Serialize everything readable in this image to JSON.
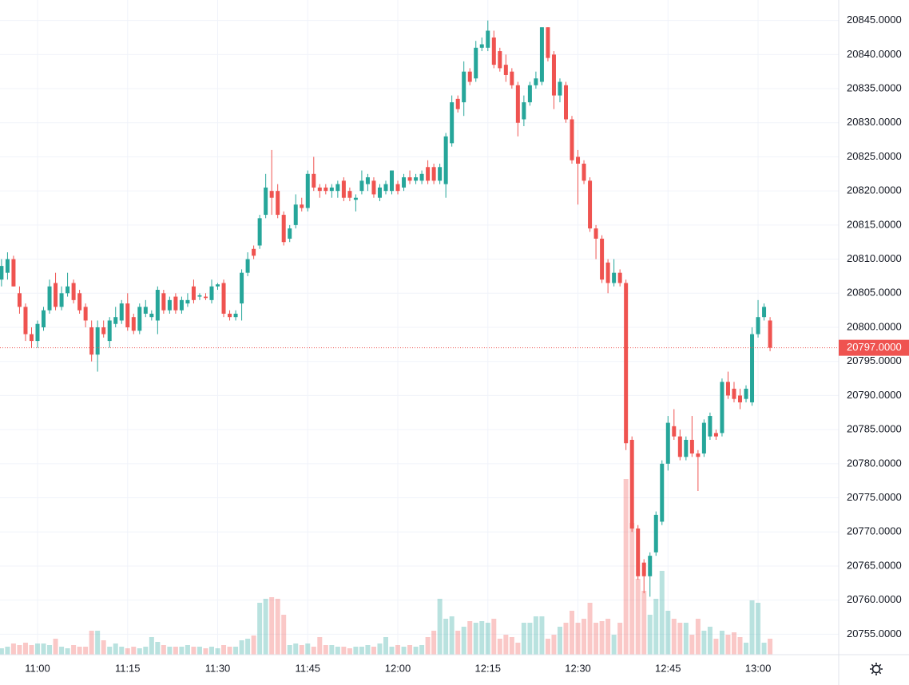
{
  "chart_data": {
    "type": "candlestick",
    "categories": [
      null,
      null,
      null,
      null,
      null,
      null,
      "11:00",
      null,
      null,
      null,
      null,
      null,
      null,
      null,
      null,
      null,
      null,
      null,
      null,
      null,
      null,
      "11:15",
      null,
      null,
      null,
      null,
      null,
      null,
      null,
      null,
      null,
      null,
      null,
      null,
      null,
      null,
      "11:30",
      null,
      null,
      null,
      null,
      null,
      null,
      null,
      null,
      null,
      null,
      null,
      null,
      null,
      null,
      "11:45",
      null,
      null,
      null,
      null,
      null,
      null,
      null,
      null,
      null,
      null,
      null,
      null,
      null,
      null,
      "12:00",
      null,
      null,
      null,
      null,
      null,
      null,
      null,
      null,
      null,
      null,
      null,
      null,
      null,
      null,
      "12:15",
      null,
      null,
      null,
      null,
      null,
      null,
      null,
      null,
      null,
      null,
      null,
      null,
      null,
      null,
      "12:30",
      null,
      null,
      null,
      null,
      null,
      null,
      null,
      null,
      null,
      null,
      null,
      null,
      null,
      null,
      "12:45",
      null,
      null,
      null,
      null,
      null,
      null,
      null,
      null,
      null,
      null,
      null,
      null,
      null,
      null,
      "13:00",
      null,
      null
    ],
    "ohlc": [
      [
        20807,
        20810,
        20806,
        20809
      ],
      [
        20808,
        20811,
        20807,
        20810
      ],
      [
        20810,
        20810.5,
        20806,
        20806
      ],
      [
        20805,
        20806,
        20802,
        20803
      ],
      [
        20803,
        20803.5,
        20798,
        20799
      ],
      [
        20799,
        20800,
        20797,
        20798
      ],
      [
        20798,
        20801,
        20797,
        20800.5
      ],
      [
        20800,
        20803,
        20799.5,
        20802.5
      ],
      [
        20802.5,
        20807,
        20802,
        20806
      ],
      [
        20806.5,
        20808,
        20802.5,
        20803
      ],
      [
        20803,
        20806,
        20802.5,
        20805
      ],
      [
        20805,
        20808,
        20804.5,
        20806
      ],
      [
        20806.5,
        20807,
        20803.5,
        20804
      ],
      [
        20805,
        20805.5,
        20802,
        20802.5
      ],
      [
        20803,
        20803.5,
        20800,
        20801
      ],
      [
        20800,
        20801,
        20795,
        20796
      ],
      [
        20796,
        20801,
        20793.5,
        20800
      ],
      [
        20800,
        20801,
        20798.5,
        20799
      ],
      [
        20798,
        20801.5,
        20797,
        20801
      ],
      [
        20800.5,
        20803,
        20800,
        20801.5
      ],
      [
        20801,
        20804,
        20800.5,
        20803.5
      ],
      [
        20803.5,
        20805,
        20799.5,
        20800
      ],
      [
        20801.5,
        20802,
        20799,
        20799.5
      ],
      [
        20799.5,
        20803.5,
        20799,
        20803
      ],
      [
        20802,
        20804,
        20801.5,
        20803
      ],
      [
        20801.5,
        20802.5,
        20801,
        20802
      ],
      [
        20801,
        20806,
        20799,
        20805.5
      ],
      [
        20805,
        20805.5,
        20802,
        20802.5
      ],
      [
        20802.5,
        20804.5,
        20802,
        20804
      ],
      [
        20804.5,
        20805,
        20802,
        20802.5
      ],
      [
        20802.5,
        20804.5,
        20802,
        20804
      ],
      [
        20803.5,
        20805,
        20803,
        20804
      ],
      [
        20806,
        20807,
        20803.5,
        20804
      ],
      [
        20804.5,
        20805,
        20804,
        20804.7
      ],
      [
        20804.5,
        20805,
        20804,
        20804.3
      ],
      [
        20804,
        20807,
        20803.5,
        20806
      ],
      [
        20806,
        20806.5,
        20805.5,
        20806.3
      ],
      [
        20806.5,
        20807,
        20801.5,
        20802
      ],
      [
        20802,
        20802.5,
        20801,
        20801.5
      ],
      [
        20801.5,
        20802.5,
        20801,
        20802
      ],
      [
        20803.5,
        20808.5,
        20801,
        20808
      ],
      [
        20808,
        20811,
        20807.5,
        20810
      ],
      [
        20811.5,
        20812,
        20810,
        20810.5
      ],
      [
        20812,
        20816.5,
        20811.5,
        20816
      ],
      [
        20816.5,
        20822.5,
        20816,
        20820.5
      ],
      [
        20820,
        20826,
        20816.5,
        20819
      ],
      [
        20820,
        20821,
        20816,
        20816.5
      ],
      [
        20816.5,
        20817,
        20812,
        20812.5
      ],
      [
        20813,
        20815,
        20812.5,
        20814.5
      ],
      [
        20815,
        20819.5,
        20814.5,
        20818
      ],
      [
        20818,
        20819,
        20817,
        20817.5
      ],
      [
        20817.5,
        20823,
        20817,
        20822.5
      ],
      [
        20822.5,
        20825,
        20820,
        20820.5
      ],
      [
        20820.5,
        20821,
        20819,
        20820
      ],
      [
        20820.5,
        20821,
        20819.5,
        20820
      ],
      [
        20820,
        20821,
        20819,
        20820.5
      ],
      [
        20820,
        20821.5,
        20819,
        20821
      ],
      [
        20821.5,
        20822,
        20818.5,
        20819
      ],
      [
        20820,
        20820.5,
        20818.5,
        20819
      ],
      [
        20818.7,
        20819.5,
        20817,
        20819
      ],
      [
        20820,
        20823,
        20819.5,
        20821.5
      ],
      [
        20821,
        20822.5,
        20820,
        20822
      ],
      [
        20821.5,
        20822,
        20819,
        20819.5
      ],
      [
        20819,
        20821,
        20818.5,
        20820.5
      ],
      [
        20820,
        20821.5,
        20819.5,
        20821
      ],
      [
        20820,
        20823,
        20819.5,
        20823
      ],
      [
        20821,
        20821.5,
        20819.5,
        20820
      ],
      [
        20820.5,
        20822.5,
        20820,
        20822
      ],
      [
        20822,
        20823,
        20821,
        20821.5
      ],
      [
        20821.5,
        20822.5,
        20821,
        20822
      ],
      [
        20821.5,
        20823,
        20821,
        20822.5
      ],
      [
        20823.5,
        20824.5,
        20821,
        20821.5
      ],
      [
        20823.5,
        20824,
        20821,
        20821.5
      ],
      [
        20821.5,
        20824,
        20821,
        20823.5
      ],
      [
        20821,
        20828.5,
        20819,
        20828
      ],
      [
        20827,
        20834,
        20826.5,
        20833
      ],
      [
        20833.5,
        20834,
        20831.5,
        20832
      ],
      [
        20833,
        20839,
        20831,
        20837.5
      ],
      [
        20837.5,
        20838,
        20835.5,
        20836
      ],
      [
        20836.5,
        20842,
        20836,
        20841
      ],
      [
        20841,
        20842.5,
        20840.5,
        20841.5
      ],
      [
        20841,
        20845,
        20840.5,
        20843.5
      ],
      [
        20842.5,
        20843.5,
        20838,
        20838.5
      ],
      [
        20840.5,
        20841,
        20837.5,
        20838
      ],
      [
        20838.5,
        20840,
        20836,
        20837
      ],
      [
        20837.5,
        20838,
        20835,
        20835.5
      ],
      [
        20835.5,
        20836,
        20828,
        20830
      ],
      [
        20830.5,
        20834,
        20829.5,
        20833
      ],
      [
        20833,
        20836,
        20832.5,
        20835.5
      ],
      [
        20835.5,
        20837.5,
        20835,
        20836.5
      ],
      [
        20836,
        20844,
        20835.5,
        20844
      ],
      [
        20844,
        20844,
        20839,
        20839.5
      ],
      [
        20840,
        20840.5,
        20832,
        20834
      ],
      [
        20834,
        20836.5,
        20833,
        20836
      ],
      [
        20835.5,
        20836,
        20830,
        20830.5
      ],
      [
        20830.5,
        20831,
        20824,
        20824.5
      ],
      [
        20825,
        20826,
        20818,
        20824
      ],
      [
        20824,
        20824.5,
        20821,
        20821.5
      ],
      [
        20821.5,
        20822,
        20814,
        20814.5
      ],
      [
        20814.5,
        20815,
        20810,
        20813
      ],
      [
        20813,
        20813.5,
        20806.5,
        20807
      ],
      [
        20809.5,
        20810,
        20805,
        20806.5
      ],
      [
        20806.5,
        20810,
        20806,
        20808
      ],
      [
        20808,
        20808.5,
        20806,
        20806.5
      ],
      [
        20806.5,
        20807,
        20782,
        20783
      ],
      [
        20783.5,
        20784,
        20770,
        20770.5
      ],
      [
        20770.5,
        20771,
        20763,
        20763.5
      ],
      [
        20765.5,
        20766,
        20761,
        20763.5
      ],
      [
        20763.5,
        20767,
        20760.5,
        20766.5
      ],
      [
        20767,
        20773,
        20766.5,
        20772.5
      ],
      [
        20771.5,
        20780.5,
        20771,
        20780
      ],
      [
        20780,
        20787,
        20779,
        20786
      ],
      [
        20785.5,
        20788,
        20783.5,
        20784
      ],
      [
        20784,
        20785,
        20780.5,
        20781
      ],
      [
        20781,
        20784,
        20780.5,
        20783.5
      ],
      [
        20783.5,
        20787,
        20781,
        20781.5
      ],
      [
        20781.5,
        20782,
        20776,
        20781
      ],
      [
        20781.5,
        20786.5,
        20781,
        20786
      ],
      [
        20784,
        20787.5,
        20783.5,
        20787
      ],
      [
        20784.5,
        20785,
        20783.5,
        20784
      ],
      [
        20784.5,
        20792.5,
        20784,
        20792
      ],
      [
        20792,
        20793.5,
        20789.5,
        20790
      ],
      [
        20791,
        20792,
        20789,
        20789.5
      ],
      [
        20790,
        20791,
        20788,
        20789
      ],
      [
        20789.5,
        20791.5,
        20789,
        20791
      ],
      [
        20789,
        20800,
        20788.5,
        20799
      ],
      [
        20799,
        20804,
        20798.5,
        20801.5
      ],
      [
        20801.5,
        20803.5,
        20801,
        20803
      ],
      [
        20801,
        20801.5,
        20796.5,
        20797
      ]
    ],
    "volume": [
      8,
      10,
      14,
      12,
      15,
      12,
      14,
      14,
      12,
      20,
      10,
      8,
      12,
      10,
      10,
      30,
      30,
      18,
      10,
      14,
      10,
      8,
      10,
      8,
      10,
      22,
      16,
      12,
      10,
      10,
      10,
      12,
      10,
      10,
      8,
      10,
      8,
      12,
      10,
      10,
      18,
      20,
      24,
      65,
      70,
      72,
      70,
      50,
      12,
      14,
      12,
      14,
      10,
      22,
      12,
      12,
      10,
      10,
      8,
      10,
      10,
      12,
      10,
      14,
      22,
      10,
      12,
      10,
      12,
      10,
      12,
      22,
      30,
      70,
      45,
      48,
      30,
      35,
      42,
      40,
      42,
      40,
      45,
      20,
      25,
      22,
      15,
      40,
      40,
      48,
      48,
      20,
      25,
      35,
      40,
      55,
      40,
      45,
      65,
      40,
      42,
      45,
      25,
      40,
      220,
      165,
      95,
      80,
      50,
      70,
      105,
      55,
      45,
      40,
      40,
      25,
      45,
      30,
      35,
      20,
      30,
      25,
      28,
      22,
      15,
      68,
      65,
      15,
      20
    ],
    "up_color": "#26a69a",
    "down_color": "#ef5350",
    "ylim": [
      20752,
      20848
    ],
    "yticks": [
      {
        "value": 20755,
        "label": "20755.0000"
      },
      {
        "value": 20760,
        "label": "20760.0000"
      },
      {
        "value": 20765,
        "label": "20765.0000"
      },
      {
        "value": 20770,
        "label": "20770.0000"
      },
      {
        "value": 20775,
        "label": "20775.0000"
      },
      {
        "value": 20780,
        "label": "20780.0000"
      },
      {
        "value": 20785,
        "label": "20785.0000"
      },
      {
        "value": 20790,
        "label": "20790.0000"
      },
      {
        "value": 20795,
        "label": "20795.0000"
      },
      {
        "value": 20800,
        "label": "20800.0000"
      },
      {
        "value": 20805,
        "label": "20805.0000"
      },
      {
        "value": 20810,
        "label": "20810.0000"
      },
      {
        "value": 20815,
        "label": "20815.0000"
      },
      {
        "value": 20820,
        "label": "20820.0000"
      },
      {
        "value": 20825,
        "label": "20825.0000"
      },
      {
        "value": 20830,
        "label": "20830.0000"
      },
      {
        "value": 20835,
        "label": "20835.0000"
      },
      {
        "value": 20840,
        "label": "20840.0000"
      },
      {
        "value": 20845,
        "label": "20845.0000"
      }
    ],
    "last_price": {
      "value": 20797,
      "label": "20797.0000"
    },
    "grid": true
  }
}
